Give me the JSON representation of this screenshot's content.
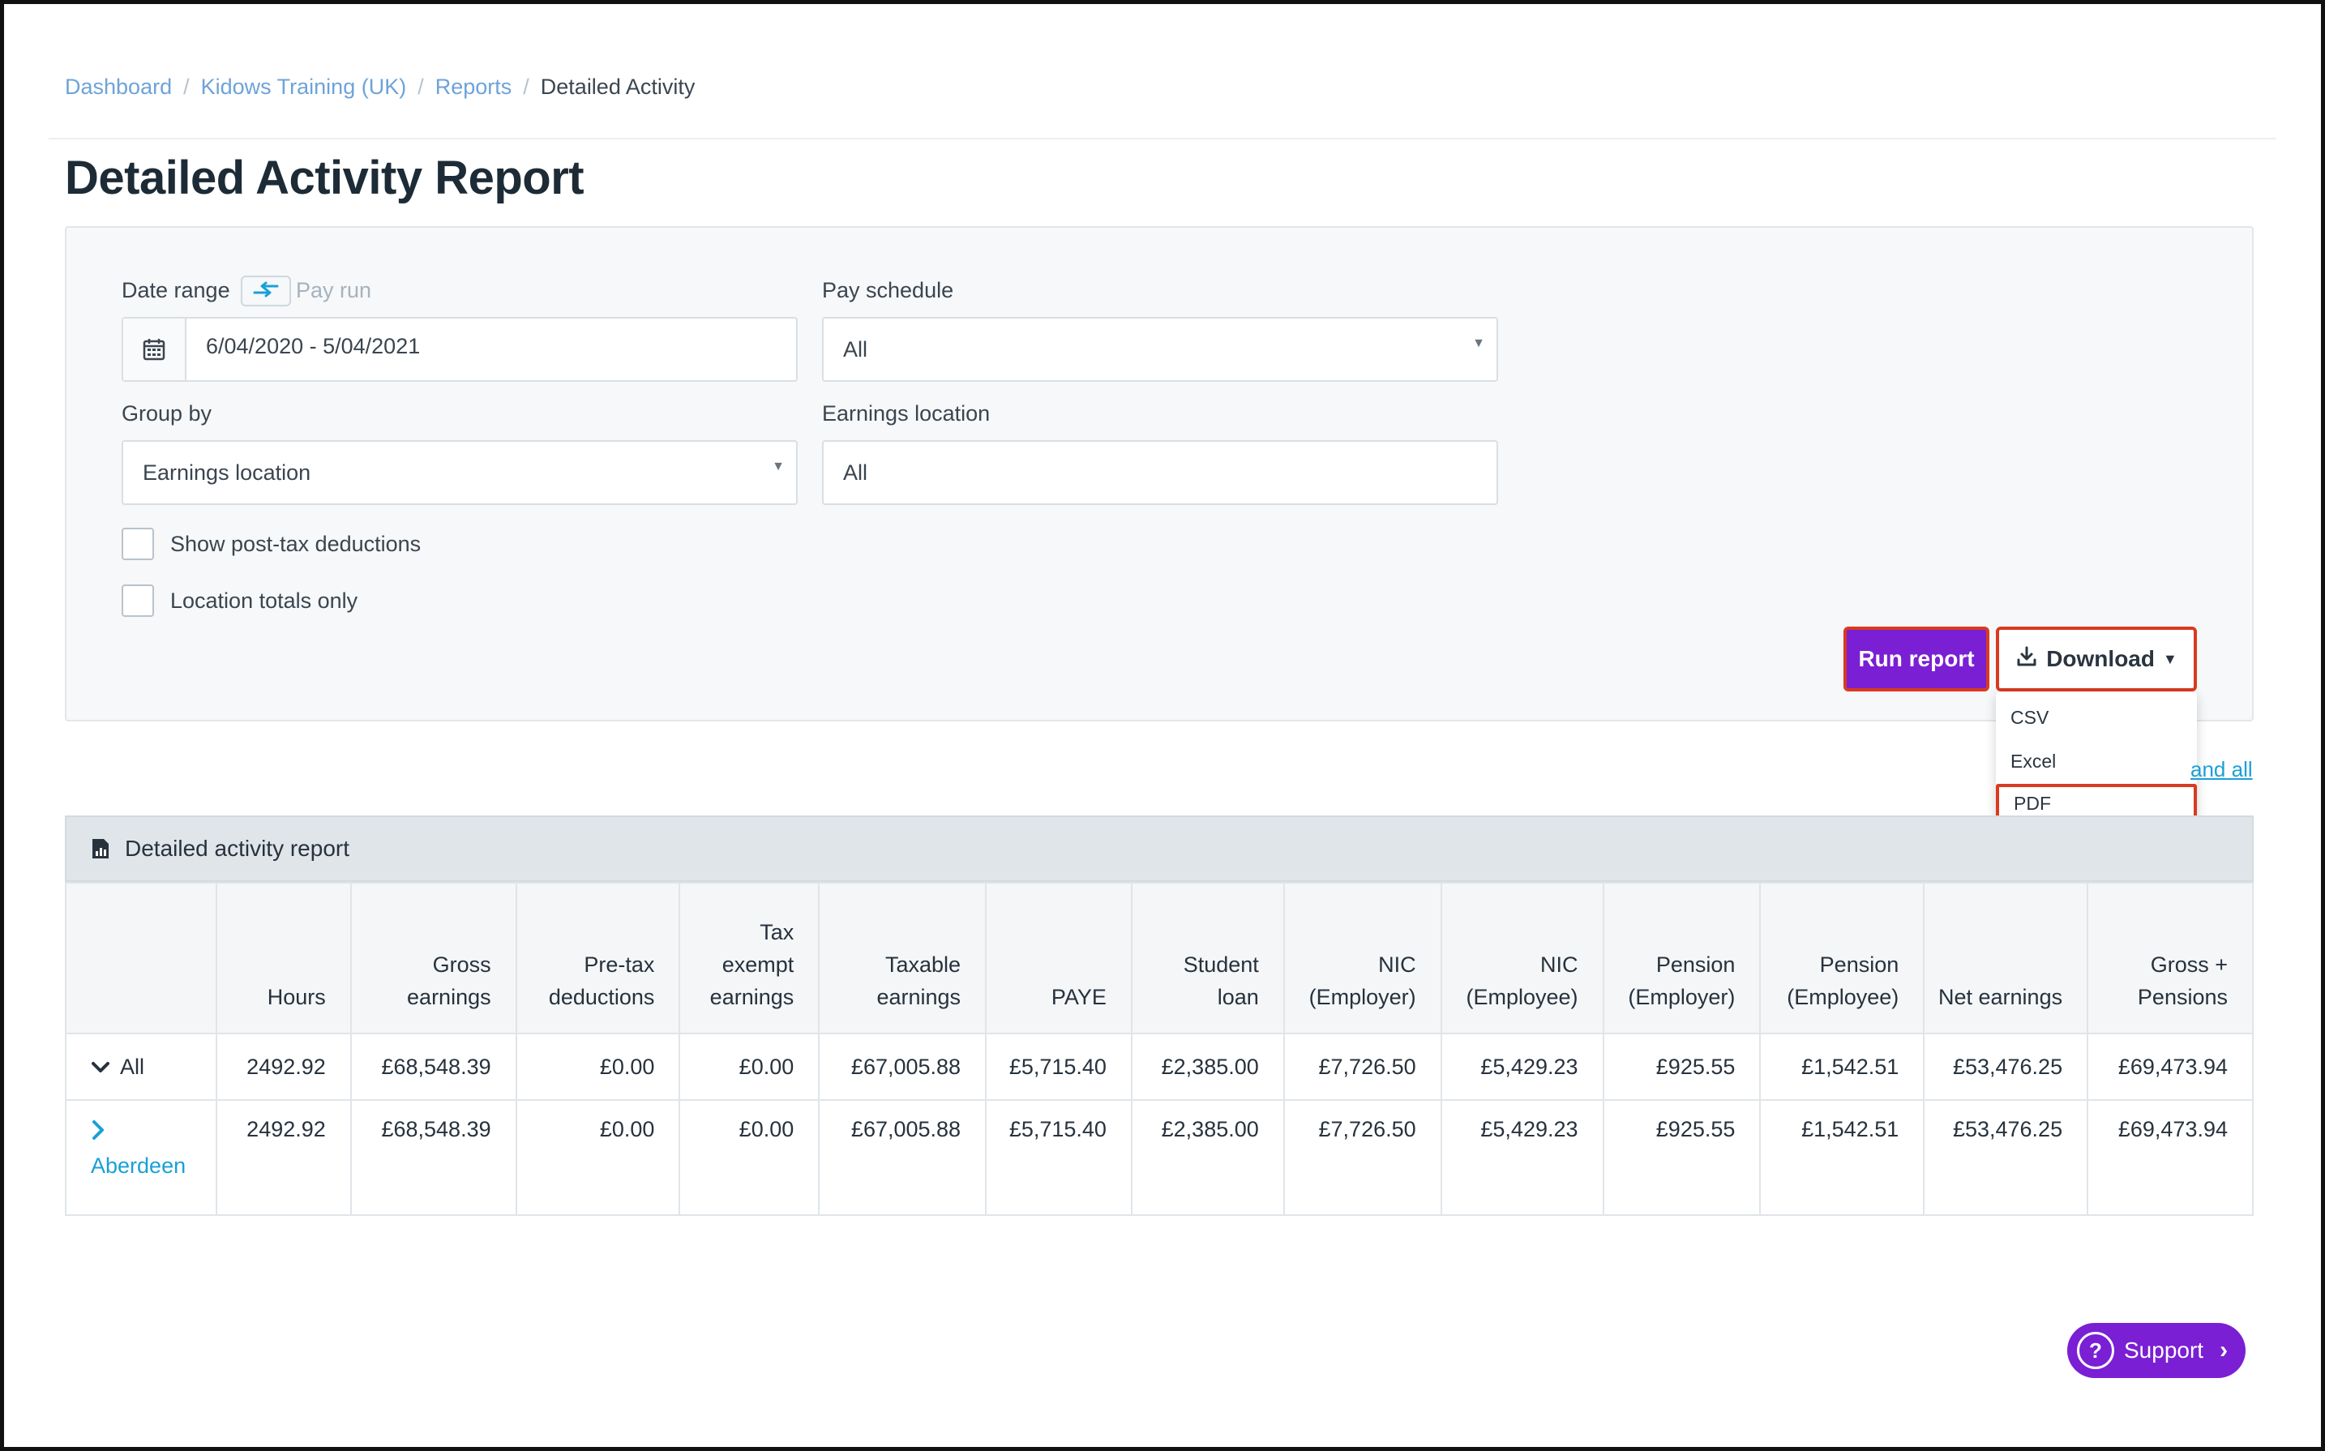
{
  "breadcrumb": {
    "items": [
      "Dashboard",
      "Kidows Training (UK)",
      "Reports"
    ],
    "separator": "/",
    "current": "Detailed Activity"
  },
  "page": {
    "title": "Detailed Activity Report"
  },
  "filters": {
    "date_range_label": "Date range",
    "pay_run_toggle": "Pay run",
    "date_range_value": "6/04/2020 - 5/04/2021",
    "pay_schedule_label": "Pay schedule",
    "pay_schedule_value": "All",
    "group_by_label": "Group by",
    "group_by_value": "Earnings location",
    "earnings_location_label": "Earnings location",
    "earnings_location_value": "All",
    "show_post_tax_label": "Show post-tax deductions",
    "location_totals_label": "Location totals only",
    "show_post_tax_checked": false,
    "location_totals_checked": false
  },
  "actions": {
    "run_report": "Run report",
    "download": "Download",
    "download_options": [
      "CSV",
      "Excel",
      "PDF"
    ],
    "highlighted_option": "PDF"
  },
  "expand_all": "and all",
  "report": {
    "title": "Detailed activity report",
    "columns": [
      "",
      "Hours",
      "Gross earnings",
      "Pre-tax deductions",
      "Tax exempt earnings",
      "Taxable earnings",
      "PAYE",
      "Student loan",
      "NIC (Employer)",
      "NIC (Employee)",
      "Pension (Employer)",
      "Pension (Employee)",
      "Net earnings",
      "Gross + Pensions"
    ],
    "rows": [
      {
        "label": "All",
        "values": [
          "2492.92",
          "£68,548.39",
          "£0.00",
          "£0.00",
          "£67,005.88",
          "£5,715.40",
          "£2,385.00",
          "£7,726.50",
          "£5,429.23",
          "£925.55",
          "£1,542.51",
          "£53,476.25",
          "£69,473.94"
        ]
      },
      {
        "label": "Aberdeen",
        "values": [
          "2492.92",
          "£68,548.39",
          "£0.00",
          "£0.00",
          "£67,005.88",
          "£5,715.40",
          "£2,385.00",
          "£7,726.50",
          "£5,429.23",
          "£925.55",
          "£1,542.51",
          "£53,476.25",
          "£69,473.94"
        ]
      }
    ]
  },
  "support": {
    "label": "Support"
  },
  "colors": {
    "primary_purple": "#7a1fd4",
    "link_blue": "#1aa0d8",
    "breadcrumb_blue": "#6ea3d8",
    "highlight_red": "#d93a20"
  }
}
